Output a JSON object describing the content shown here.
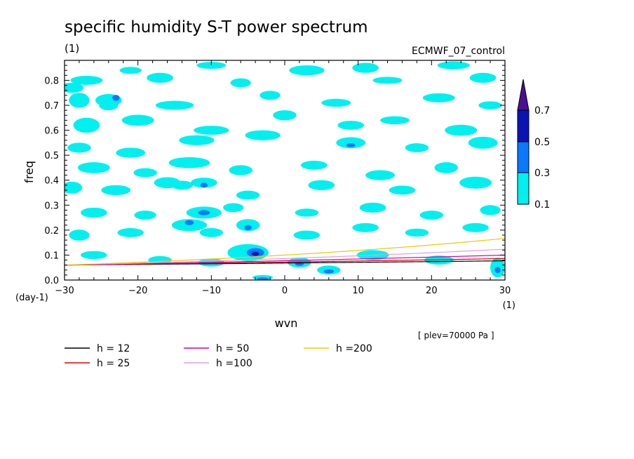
{
  "chart_data": {
    "type": "heatmap",
    "title": "specific humidity S-T power spectrum",
    "subtitle_left": "(1)",
    "subtitle_right": "ECMWF_07_control",
    "xlabel": "wvn",
    "ylabel": "freq",
    "x_unit": "(1)",
    "y_unit": "(day-1)",
    "xlim": [
      -30,
      30
    ],
    "ylim": [
      0,
      0.88
    ],
    "x_ticks": [
      -30,
      -20,
      -10,
      0,
      10,
      20,
      30
    ],
    "y_ticks": [
      0.0,
      0.1,
      0.2,
      0.3,
      0.4,
      0.5,
      0.6,
      0.7,
      0.8
    ],
    "annotation": "[ plev=70000 Pa ]",
    "colorbar": {
      "levels": [
        0.1,
        0.3,
        0.5,
        0.7
      ],
      "tick_labels": [
        "0.1",
        "0.3",
        "0.5",
        "0.7"
      ],
      "colors": [
        "#00f0f0",
        "#0a78ff",
        "#0a14b4",
        "#4b0f96"
      ]
    },
    "patches": [
      {
        "x": -29,
        "y": 0.77,
        "rx": 1.6,
        "ry": 0.02,
        "level": 0
      },
      {
        "x": -27,
        "y": 0.8,
        "rx": 2.2,
        "ry": 0.018,
        "level": 0
      },
      {
        "x": -21,
        "y": 0.84,
        "rx": 1.5,
        "ry": 0.014,
        "level": 0
      },
      {
        "x": -17,
        "y": 0.81,
        "rx": 1.8,
        "ry": 0.02,
        "level": 0
      },
      {
        "x": -10,
        "y": 0.86,
        "rx": 2.0,
        "ry": 0.014,
        "level": 0
      },
      {
        "x": -6,
        "y": 0.79,
        "rx": 1.4,
        "ry": 0.018,
        "level": 0
      },
      {
        "x": 3,
        "y": 0.84,
        "rx": 2.4,
        "ry": 0.02,
        "level": 0
      },
      {
        "x": 11,
        "y": 0.85,
        "rx": 1.8,
        "ry": 0.02,
        "level": 0
      },
      {
        "x": 14,
        "y": 0.8,
        "rx": 2.0,
        "ry": 0.014,
        "level": 0
      },
      {
        "x": 23,
        "y": 0.86,
        "rx": 2.2,
        "ry": 0.016,
        "level": 0
      },
      {
        "x": 27,
        "y": 0.81,
        "rx": 1.8,
        "ry": 0.02,
        "level": 0
      },
      {
        "x": -28,
        "y": 0.72,
        "rx": 1.4,
        "ry": 0.03,
        "level": 0
      },
      {
        "x": -24,
        "y": 0.7,
        "rx": 1.3,
        "ry": 0.02,
        "level": 0
      },
      {
        "x": -24,
        "y": 0.72,
        "rx": 1.8,
        "ry": 0.025,
        "level": 0
      },
      {
        "x": -23,
        "y": 0.73,
        "rx": 0.5,
        "ry": 0.012,
        "level": 1
      },
      {
        "x": -15,
        "y": 0.7,
        "rx": 2.6,
        "ry": 0.018,
        "level": 0
      },
      {
        "x": -2,
        "y": 0.74,
        "rx": 1.4,
        "ry": 0.018,
        "level": 0
      },
      {
        "x": 7,
        "y": 0.71,
        "rx": 2.0,
        "ry": 0.016,
        "level": 0
      },
      {
        "x": 21,
        "y": 0.73,
        "rx": 2.2,
        "ry": 0.018,
        "level": 0
      },
      {
        "x": 28,
        "y": 0.7,
        "rx": 1.6,
        "ry": 0.016,
        "level": 0
      },
      {
        "x": -27,
        "y": 0.62,
        "rx": 1.8,
        "ry": 0.03,
        "level": 0
      },
      {
        "x": -20,
        "y": 0.64,
        "rx": 2.2,
        "ry": 0.022,
        "level": 0
      },
      {
        "x": -10,
        "y": 0.6,
        "rx": 2.4,
        "ry": 0.018,
        "level": 0
      },
      {
        "x": 0,
        "y": 0.66,
        "rx": 1.6,
        "ry": 0.02,
        "level": 0
      },
      {
        "x": 9,
        "y": 0.62,
        "rx": 1.8,
        "ry": 0.018,
        "level": 0
      },
      {
        "x": 15,
        "y": 0.64,
        "rx": 2.0,
        "ry": 0.016,
        "level": 0
      },
      {
        "x": 24,
        "y": 0.6,
        "rx": 2.2,
        "ry": 0.022,
        "level": 0
      },
      {
        "x": -28,
        "y": 0.53,
        "rx": 1.6,
        "ry": 0.02,
        "level": 0
      },
      {
        "x": -21,
        "y": 0.51,
        "rx": 2.0,
        "ry": 0.02,
        "level": 0
      },
      {
        "x": -12,
        "y": 0.56,
        "rx": 2.4,
        "ry": 0.02,
        "level": 0
      },
      {
        "x": -3,
        "y": 0.58,
        "rx": 2.4,
        "ry": 0.02,
        "level": 0
      },
      {
        "x": 9,
        "y": 0.55,
        "rx": 2.0,
        "ry": 0.022,
        "level": 0
      },
      {
        "x": 9,
        "y": 0.54,
        "rx": 0.6,
        "ry": 0.008,
        "level": 1
      },
      {
        "x": 18,
        "y": 0.53,
        "rx": 1.6,
        "ry": 0.018,
        "level": 0
      },
      {
        "x": 27,
        "y": 0.55,
        "rx": 2.0,
        "ry": 0.024,
        "level": 0
      },
      {
        "x": -26,
        "y": 0.45,
        "rx": 2.2,
        "ry": 0.022,
        "level": 0
      },
      {
        "x": -19,
        "y": 0.43,
        "rx": 1.6,
        "ry": 0.018,
        "level": 0
      },
      {
        "x": -13,
        "y": 0.47,
        "rx": 2.8,
        "ry": 0.022,
        "level": 0
      },
      {
        "x": -6,
        "y": 0.44,
        "rx": 1.6,
        "ry": 0.02,
        "level": 0
      },
      {
        "x": 4,
        "y": 0.46,
        "rx": 1.8,
        "ry": 0.018,
        "level": 0
      },
      {
        "x": 13,
        "y": 0.42,
        "rx": 2.0,
        "ry": 0.02,
        "level": 0
      },
      {
        "x": 22,
        "y": 0.45,
        "rx": 1.6,
        "ry": 0.022,
        "level": 0
      },
      {
        "x": -29,
        "y": 0.37,
        "rx": 1.4,
        "ry": 0.024,
        "level": 0
      },
      {
        "x": -23,
        "y": 0.36,
        "rx": 2.0,
        "ry": 0.02,
        "level": 0
      },
      {
        "x": -16,
        "y": 0.39,
        "rx": 1.8,
        "ry": 0.022,
        "level": 0
      },
      {
        "x": -14,
        "y": 0.38,
        "rx": 1.5,
        "ry": 0.018,
        "level": 0
      },
      {
        "x": -11,
        "y": 0.39,
        "rx": 1.8,
        "ry": 0.02,
        "level": 0
      },
      {
        "x": -11,
        "y": 0.38,
        "rx": 0.5,
        "ry": 0.01,
        "level": 1
      },
      {
        "x": -5,
        "y": 0.34,
        "rx": 1.6,
        "ry": 0.018,
        "level": 0
      },
      {
        "x": 5,
        "y": 0.38,
        "rx": 1.8,
        "ry": 0.02,
        "level": 0
      },
      {
        "x": 16,
        "y": 0.36,
        "rx": 1.8,
        "ry": 0.018,
        "level": 0
      },
      {
        "x": 26,
        "y": 0.39,
        "rx": 2.2,
        "ry": 0.024,
        "level": 0
      },
      {
        "x": -26,
        "y": 0.27,
        "rx": 1.8,
        "ry": 0.02,
        "level": 0
      },
      {
        "x": -19,
        "y": 0.26,
        "rx": 1.5,
        "ry": 0.018,
        "level": 0
      },
      {
        "x": -11,
        "y": 0.27,
        "rx": 2.4,
        "ry": 0.024,
        "level": 0
      },
      {
        "x": -11,
        "y": 0.27,
        "rx": 0.8,
        "ry": 0.01,
        "level": 1
      },
      {
        "x": -7,
        "y": 0.29,
        "rx": 1.4,
        "ry": 0.018,
        "level": 0
      },
      {
        "x": 3,
        "y": 0.27,
        "rx": 1.6,
        "ry": 0.016,
        "level": 0
      },
      {
        "x": 12,
        "y": 0.29,
        "rx": 1.8,
        "ry": 0.02,
        "level": 0
      },
      {
        "x": 20,
        "y": 0.26,
        "rx": 1.6,
        "ry": 0.018,
        "level": 0
      },
      {
        "x": 28,
        "y": 0.28,
        "rx": 1.4,
        "ry": 0.02,
        "level": 0
      },
      {
        "x": -28,
        "y": 0.18,
        "rx": 1.4,
        "ry": 0.022,
        "level": 0
      },
      {
        "x": -21,
        "y": 0.19,
        "rx": 1.8,
        "ry": 0.018,
        "level": 0
      },
      {
        "x": -13,
        "y": 0.22,
        "rx": 2.4,
        "ry": 0.024,
        "level": 0
      },
      {
        "x": -13,
        "y": 0.23,
        "rx": 0.6,
        "ry": 0.01,
        "level": 1
      },
      {
        "x": -10,
        "y": 0.19,
        "rx": 1.6,
        "ry": 0.018,
        "level": 0
      },
      {
        "x": -5,
        "y": 0.22,
        "rx": 1.6,
        "ry": 0.024,
        "level": 0
      },
      {
        "x": -5,
        "y": 0.21,
        "rx": 0.5,
        "ry": 0.01,
        "level": 1
      },
      {
        "x": 3,
        "y": 0.18,
        "rx": 1.8,
        "ry": 0.018,
        "level": 0
      },
      {
        "x": 11,
        "y": 0.21,
        "rx": 1.8,
        "ry": 0.018,
        "level": 0
      },
      {
        "x": 18,
        "y": 0.19,
        "rx": 1.6,
        "ry": 0.016,
        "level": 0
      },
      {
        "x": 26,
        "y": 0.21,
        "rx": 1.8,
        "ry": 0.018,
        "level": 0
      },
      {
        "x": -26,
        "y": 0.1,
        "rx": 1.8,
        "ry": 0.016,
        "level": 0
      },
      {
        "x": -17,
        "y": 0.08,
        "rx": 1.6,
        "ry": 0.016,
        "level": 0
      },
      {
        "x": -10,
        "y": 0.07,
        "rx": 1.8,
        "ry": 0.016,
        "level": 0
      },
      {
        "x": -5,
        "y": 0.11,
        "rx": 2.8,
        "ry": 0.034,
        "level": 0
      },
      {
        "x": -4,
        "y": 0.11,
        "rx": 1.2,
        "ry": 0.018,
        "level": 1
      },
      {
        "x": -4,
        "y": 0.105,
        "rx": 0.5,
        "ry": 0.008,
        "level": 2
      },
      {
        "x": 2,
        "y": 0.07,
        "rx": 1.6,
        "ry": 0.02,
        "level": 0
      },
      {
        "x": 2,
        "y": 0.065,
        "rx": 0.6,
        "ry": 0.008,
        "level": 1
      },
      {
        "x": 6,
        "y": 0.04,
        "rx": 1.6,
        "ry": 0.018,
        "level": 0
      },
      {
        "x": 6,
        "y": 0.035,
        "rx": 0.7,
        "ry": 0.008,
        "level": 1
      },
      {
        "x": -3,
        "y": 0.01,
        "rx": 1.4,
        "ry": 0.01,
        "level": 0
      },
      {
        "x": -3,
        "y": 0.005,
        "rx": 0.8,
        "ry": 0.005,
        "level": 1
      },
      {
        "x": 12,
        "y": 0.1,
        "rx": 2.2,
        "ry": 0.02,
        "level": 0
      },
      {
        "x": 21,
        "y": 0.08,
        "rx": 2.0,
        "ry": 0.018,
        "level": 0
      },
      {
        "x": 29,
        "y": 0.05,
        "rx": 1.0,
        "ry": 0.04,
        "level": 0
      },
      {
        "x": 29,
        "y": 0.04,
        "rx": 0.4,
        "ry": 0.012,
        "level": 1
      }
    ],
    "series": [
      {
        "name": "h = 12",
        "h": 12,
        "color": "#000000"
      },
      {
        "name": "h = 25",
        "h": 25,
        "color": "#e00000"
      },
      {
        "name": "h = 50",
        "h": 50,
        "color": "#d000b0"
      },
      {
        "name": "h =100",
        "h": 100,
        "color": "#dda0dd"
      },
      {
        "name": "h =200",
        "h": 200,
        "color": "#f0c800"
      }
    ]
  }
}
